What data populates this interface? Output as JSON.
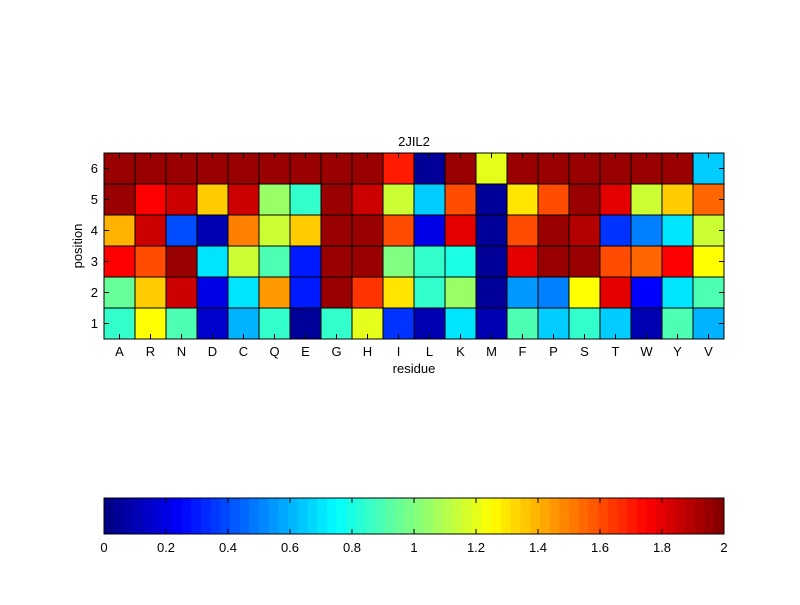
{
  "chart_data": [
    {
      "type": "heatmap",
      "title": "2JIL2",
      "xlabel": "residue",
      "ylabel": "position",
      "x_categories": [
        "A",
        "R",
        "N",
        "D",
        "C",
        "Q",
        "E",
        "G",
        "H",
        "I",
        "L",
        "K",
        "M",
        "F",
        "P",
        "S",
        "T",
        "W",
        "Y",
        "V"
      ],
      "y_categories": [
        "1",
        "2",
        "3",
        "4",
        "5",
        "6"
      ],
      "value_range": [
        0,
        2
      ],
      "colormap": "jet",
      "grid": true,
      "values": [
        [
          0.85,
          1.25,
          0.9,
          0.15,
          0.6,
          0.85,
          0.05,
          0.85,
          1.2,
          0.35,
          0.1,
          0.7,
          0.1,
          0.9,
          0.65,
          0.85,
          0.65,
          0.1,
          0.9,
          0.6
        ],
        [
          0.95,
          1.35,
          1.85,
          0.2,
          0.7,
          1.45,
          0.3,
          1.95,
          1.65,
          1.3,
          0.85,
          1.05,
          0.05,
          0.55,
          0.5,
          1.25,
          1.8,
          0.25,
          0.7,
          0.9
        ],
        [
          1.75,
          1.6,
          1.95,
          0.7,
          1.15,
          0.9,
          0.3,
          1.95,
          1.95,
          1.0,
          0.85,
          0.8,
          0.05,
          1.8,
          1.95,
          1.95,
          1.6,
          1.55,
          1.75,
          1.25
        ],
        [
          1.4,
          1.85,
          0.4,
          0.1,
          1.5,
          1.15,
          1.35,
          1.95,
          1.95,
          1.6,
          0.2,
          1.8,
          0.05,
          1.6,
          1.95,
          1.9,
          0.35,
          0.5,
          0.7,
          1.15
        ],
        [
          1.95,
          1.75,
          1.85,
          1.35,
          1.85,
          1.05,
          0.85,
          1.95,
          1.85,
          1.15,
          0.65,
          1.6,
          0.05,
          1.3,
          1.6,
          1.95,
          1.8,
          1.15,
          1.35,
          1.55
        ],
        [
          1.95,
          1.95,
          1.95,
          1.95,
          1.95,
          1.95,
          1.95,
          1.95,
          1.95,
          1.7,
          0.05,
          1.95,
          1.2,
          1.95,
          1.95,
          1.95,
          1.95,
          1.95,
          1.95,
          0.65
        ]
      ]
    },
    {
      "type": "colorbar",
      "orientation": "horizontal",
      "colormap": "jet",
      "range": [
        0,
        2
      ],
      "ticks": [
        "0",
        "0.2",
        "0.4",
        "0.6",
        "0.8",
        "1",
        "1.2",
        "1.4",
        "1.6",
        "1.8",
        "2"
      ]
    }
  ]
}
